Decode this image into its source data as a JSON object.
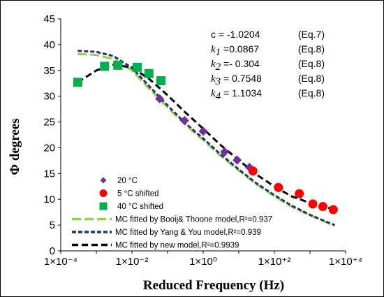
{
  "chart_data": {
    "type": "scatter",
    "xlabel": "Reduced Frequency (Hz)",
    "ylabel": "Φ degrees",
    "xscale": "log",
    "xlim": [
      0.0001,
      10000
    ],
    "ylim": [
      0,
      45
    ],
    "xticks": [
      "1×10⁻⁴",
      "1×10⁻²",
      "1×10⁰",
      "1×10⁺²",
      "1×10⁺⁴"
    ],
    "yticks": [
      "0",
      "5",
      "10",
      "15",
      "20",
      "25",
      "30",
      "35",
      "40",
      "45"
    ],
    "grid": false,
    "legend_position": "bottom-left",
    "annotations": [
      {
        "text": "c = -1.0204",
        "eq": "(Eq.7)"
      },
      {
        "var": "k",
        "sub": "1",
        "text": " =0.0867",
        "eq": "(Eq.8)"
      },
      {
        "var": "k",
        "sub": "2",
        "text": " =- 0.304",
        "eq": "(Eq.8)"
      },
      {
        "var": "k",
        "sub": "3",
        "text": " = 0.7548",
        "eq": "(Eq.8)"
      },
      {
        "var": "k",
        "sub": "4",
        "text": " = 1.1034",
        "eq": "(Eq.8)"
      }
    ],
    "series": [
      {
        "name": "20 °C",
        "kind": "points",
        "marker": "diamond",
        "color": "#7030a0",
        "x": [
          0.06,
          0.3,
          1.0,
          4.0,
          9.0,
          20.0
        ],
        "y": [
          29.5,
          25.3,
          23.2,
          19.2,
          17.6,
          16.2
        ]
      },
      {
        "name": "5 °C shifted",
        "kind": "points",
        "marker": "circle",
        "color": "#ff0000",
        "x": [
          25,
          130,
          500,
          1200,
          2300,
          4500
        ],
        "y": [
          15.5,
          12.3,
          11.1,
          9.1,
          8.6,
          8.0
        ]
      },
      {
        "name": "40 °C shifted",
        "kind": "points",
        "marker": "square",
        "color": "#00b050",
        "x": [
          0.0003,
          0.0017,
          0.004,
          0.014,
          0.03,
          0.065
        ],
        "y": [
          32.7,
          35.8,
          36.0,
          35.6,
          34.4,
          33.0
        ]
      },
      {
        "name": "MC fitted by Booij& Thoone model,R²=0.937",
        "kind": "line",
        "dash": "long",
        "color": "#92d050",
        "x": [
          0.0003,
          0.001,
          0.003,
          0.01,
          0.03,
          0.1,
          0.3,
          1,
          3,
          10,
          30,
          100,
          300,
          1000,
          3000,
          5000
        ],
        "y": [
          38.2,
          38.0,
          37.2,
          35.0,
          31.5,
          27.8,
          24.6,
          21.5,
          18.5,
          15.6,
          13.0,
          10.6,
          8.6,
          6.9,
          5.5,
          4.9
        ]
      },
      {
        "name": "MC fitted by Yang & You model,R²=0.939",
        "kind": "line",
        "dash": "short",
        "color": "#1f3864",
        "x": [
          0.0003,
          0.001,
          0.003,
          0.01,
          0.03,
          0.1,
          0.3,
          1,
          3,
          10,
          30,
          100,
          300,
          1000,
          3000,
          5000
        ],
        "y": [
          38.8,
          38.6,
          37.8,
          35.5,
          32.0,
          28.2,
          24.9,
          21.8,
          18.8,
          15.8,
          13.2,
          10.8,
          8.8,
          7.0,
          5.6,
          5.0
        ]
      },
      {
        "name": "MC fitted by new model,R²=0.9939",
        "kind": "line",
        "dash": "medium",
        "color": "#000000",
        "x": [
          0.0003,
          0.001,
          0.003,
          0.01,
          0.03,
          0.1,
          0.3,
          1,
          3,
          10,
          30,
          100,
          300,
          1000,
          3000,
          5000
        ],
        "y": [
          32.7,
          35.0,
          36.1,
          35.6,
          33.4,
          30.2,
          27.0,
          23.7,
          20.6,
          17.6,
          14.9,
          12.5,
          10.6,
          9.3,
          8.4,
          8.1
        ]
      }
    ]
  }
}
